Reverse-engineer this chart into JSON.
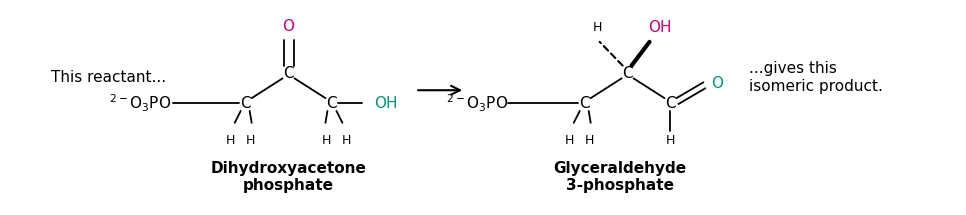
{
  "figsize": [
    9.66,
    2.15
  ],
  "dpi": 100,
  "bg_color": "#ffffff",
  "text_color": "#000000",
  "pink_color": "#cc0077",
  "teal_color": "#009977",
  "label_left": "This reactant...",
  "label_right": "...gives this\nisomeric product.",
  "label_dhap": "Dihydroxyacetone\nphosphate",
  "label_gap": "Glyceraldehyde\n3-phosphate",
  "font_size_main": 11,
  "font_size_small": 9,
  "font_size_bold": 11
}
